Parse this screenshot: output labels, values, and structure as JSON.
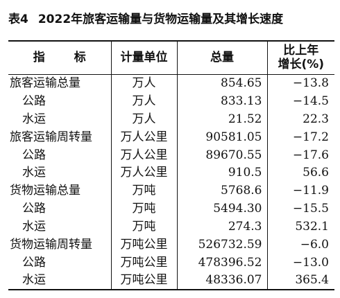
{
  "table": {
    "number": "表4",
    "title": "2022年旅客运输量与货物运输量及其增长速度",
    "headers": {
      "indicator": "指 标",
      "unit": "计量单位",
      "total": "总量",
      "change_line1": "比上年",
      "change_line2": "增长(%)"
    },
    "rows": [
      {
        "name": "旅客运输总量",
        "unit": "万人",
        "total": "854.65",
        "change": "−13.8",
        "level": "main"
      },
      {
        "name": "公路",
        "unit": "万人",
        "total": "833.13",
        "change": "−14.5",
        "level": "sub"
      },
      {
        "name": "水运",
        "unit": "万人",
        "total": "21.52",
        "change": "22.3",
        "level": "sub"
      },
      {
        "name": "旅客运输周转量",
        "unit": "万人公里",
        "total": "90581.05",
        "change": "−17.2",
        "level": "main"
      },
      {
        "name": "公路",
        "unit": "万人公里",
        "total": "89670.55",
        "change": "−17.6",
        "level": "sub"
      },
      {
        "name": "水运",
        "unit": "万人公里",
        "total": "910.5",
        "change": "56.6",
        "level": "sub"
      },
      {
        "name": "货物运输总量",
        "unit": "万吨",
        "total": "5768.6",
        "change": "−11.9",
        "level": "main"
      },
      {
        "name": "公路",
        "unit": "万吨",
        "total": "5494.30",
        "change": "−15.5",
        "level": "sub"
      },
      {
        "name": "水运",
        "unit": "万吨",
        "total": "274.3",
        "change": "532.1",
        "level": "sub"
      },
      {
        "name": "货物运输周转量",
        "unit": "万吨公里",
        "total": "526732.59",
        "change": "−6.0",
        "level": "main"
      },
      {
        "name": "公路",
        "unit": "万吨公里",
        "total": "478396.52",
        "change": "−13.0",
        "level": "sub"
      },
      {
        "name": "水运",
        "unit": "万吨公里",
        "total": "48336.07",
        "change": "365.4",
        "level": "sub"
      }
    ]
  }
}
